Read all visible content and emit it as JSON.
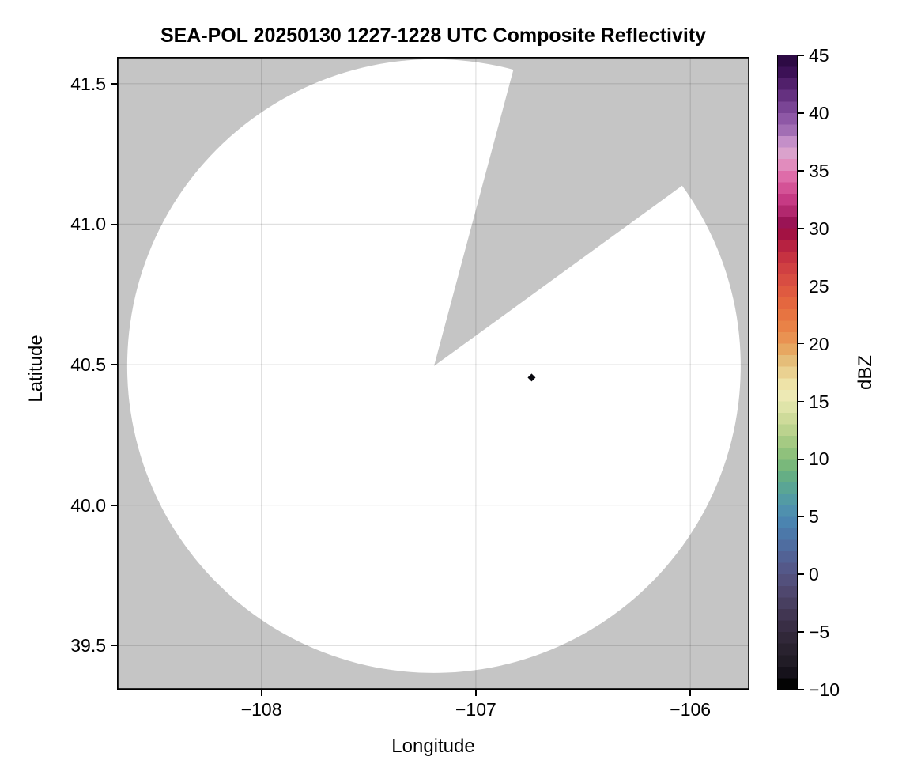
{
  "title": "SEA-POL 20250130 1227-1228 UTC Composite Reflectivity",
  "axes": {
    "xlabel": "Longitude",
    "ylabel": "Latitude",
    "x_ticks": [
      {
        "value": -108,
        "label": "−108"
      },
      {
        "value": -107,
        "label": "−107"
      },
      {
        "value": -106,
        "label": "−106"
      }
    ],
    "y_ticks": [
      {
        "value": 41.5,
        "label": "41.5"
      },
      {
        "value": 41.0,
        "label": "41.0"
      },
      {
        "value": 40.5,
        "label": "40.5"
      },
      {
        "value": 40.0,
        "label": "40.0"
      },
      {
        "value": 39.5,
        "label": "39.5"
      }
    ]
  },
  "colorbar": {
    "label": "dBZ",
    "min": -10,
    "max": 45,
    "ticks": [
      {
        "value": 45,
        "label": "45"
      },
      {
        "value": 40,
        "label": "40"
      },
      {
        "value": 35,
        "label": "35"
      },
      {
        "value": 30,
        "label": "30"
      },
      {
        "value": 25,
        "label": "25"
      },
      {
        "value": 20,
        "label": "20"
      },
      {
        "value": 15,
        "label": "15"
      },
      {
        "value": 10,
        "label": "10"
      },
      {
        "value": 5,
        "label": "5"
      },
      {
        "value": 0,
        "label": "0"
      },
      {
        "value": -5,
        "label": "−5"
      },
      {
        "value": -10,
        "label": "−10"
      }
    ],
    "band_step_dbz": 1,
    "bands_top_value_and_color": [
      {
        "v": 45,
        "c": "#2d0a44"
      },
      {
        "v": 44,
        "c": "#3c1156"
      },
      {
        "v": 43,
        "c": "#51206b"
      },
      {
        "v": 42,
        "c": "#653180"
      },
      {
        "v": 41,
        "c": "#7a4595"
      },
      {
        "v": 40,
        "c": "#8e58a6"
      },
      {
        "v": 39,
        "c": "#a26eb4"
      },
      {
        "v": 38,
        "c": "#c48fc8"
      },
      {
        "v": 37,
        "c": "#daa2cc"
      },
      {
        "v": 36,
        "c": "#e18cbd"
      },
      {
        "v": 35,
        "c": "#de6ca9"
      },
      {
        "v": 34,
        "c": "#d45296"
      },
      {
        "v": 33,
        "c": "#c63a84"
      },
      {
        "v": 32,
        "c": "#b2286e"
      },
      {
        "v": 31,
        "c": "#9a1455"
      },
      {
        "v": 30,
        "c": "#a31243"
      },
      {
        "v": 29,
        "c": "#b72241"
      },
      {
        "v": 28,
        "c": "#c63241"
      },
      {
        "v": 27,
        "c": "#d04042"
      },
      {
        "v": 26,
        "c": "#d84d42"
      },
      {
        "v": 25,
        "c": "#df5a40"
      },
      {
        "v": 24,
        "c": "#e4673f"
      },
      {
        "v": 23,
        "c": "#e77441"
      },
      {
        "v": 22,
        "c": "#e98247"
      },
      {
        "v": 21,
        "c": "#e99252"
      },
      {
        "v": 20,
        "c": "#e7a761"
      },
      {
        "v": 19,
        "c": "#e5bd79"
      },
      {
        "v": 18,
        "c": "#ead191"
      },
      {
        "v": 17,
        "c": "#eee3a8"
      },
      {
        "v": 16,
        "c": "#ede9b4"
      },
      {
        "v": 15,
        "c": "#dfe4a9"
      },
      {
        "v": 14,
        "c": "#cedb9a"
      },
      {
        "v": 13,
        "c": "#bbd38e"
      },
      {
        "v": 12,
        "c": "#a5ca83"
      },
      {
        "v": 11,
        "c": "#8fc17c"
      },
      {
        "v": 10,
        "c": "#79b87b"
      },
      {
        "v": 9,
        "c": "#65ae85"
      },
      {
        "v": 8,
        "c": "#5aa595"
      },
      {
        "v": 7,
        "c": "#539ba4"
      },
      {
        "v": 6,
        "c": "#4f90ae"
      },
      {
        "v": 5,
        "c": "#4b84b0"
      },
      {
        "v": 4,
        "c": "#4c78a9"
      },
      {
        "v": 3,
        "c": "#4f6da0"
      },
      {
        "v": 2,
        "c": "#526295"
      },
      {
        "v": 1,
        "c": "#545889"
      },
      {
        "v": 0,
        "c": "#53507c"
      },
      {
        "v": -1,
        "c": "#4f476e"
      },
      {
        "v": -2,
        "c": "#483f60"
      },
      {
        "v": -3,
        "c": "#413652"
      },
      {
        "v": -4,
        "c": "#392e45"
      },
      {
        "v": -5,
        "c": "#312839"
      },
      {
        "v": -6,
        "c": "#29222f"
      },
      {
        "v": -7,
        "c": "#211c26"
      },
      {
        "v": -8,
        "c": "#16121b"
      },
      {
        "v": -9,
        "c": "#040404"
      }
    ]
  },
  "colors": {
    "no_data_gray": "#c5c5c5",
    "coverage_white": "#ffffff",
    "grid_line": "rgba(0,0,0,0.12)",
    "frame": "#000000",
    "echo_marker": "#0a0a10"
  },
  "chart_data": {
    "type": "heatmap",
    "title": "SEA-POL 20250130 1227-1228 UTC Composite Reflectivity",
    "xlabel": "Longitude",
    "ylabel": "Latitude",
    "xlim": [
      -108.67,
      -105.72
    ],
    "ylim": [
      39.34,
      41.6
    ],
    "x_ticks": [
      -108,
      -107,
      -106
    ],
    "y_ticks": [
      39.5,
      40.0,
      40.5,
      41.0,
      41.5
    ],
    "grid": true,
    "legend_position": "right-colorbar",
    "colorbar": {
      "label": "dBZ",
      "range": [
        -10,
        45
      ],
      "tick_step": 5
    },
    "radar_coverage": {
      "center": {
        "lon": -107.195,
        "lat": 40.495
      },
      "radius_deg_lon": 1.43,
      "radius_deg_lat": 1.092,
      "blocked_sector_azimuth_deg": [
        15,
        54
      ],
      "inside_fill": "white (radar coverage, no echoes)",
      "outside_fill": "gray (no data)"
    },
    "echoes": [
      {
        "lon": -106.74,
        "lat": 40.454,
        "approx_value_dbz": -10
      }
    ]
  }
}
